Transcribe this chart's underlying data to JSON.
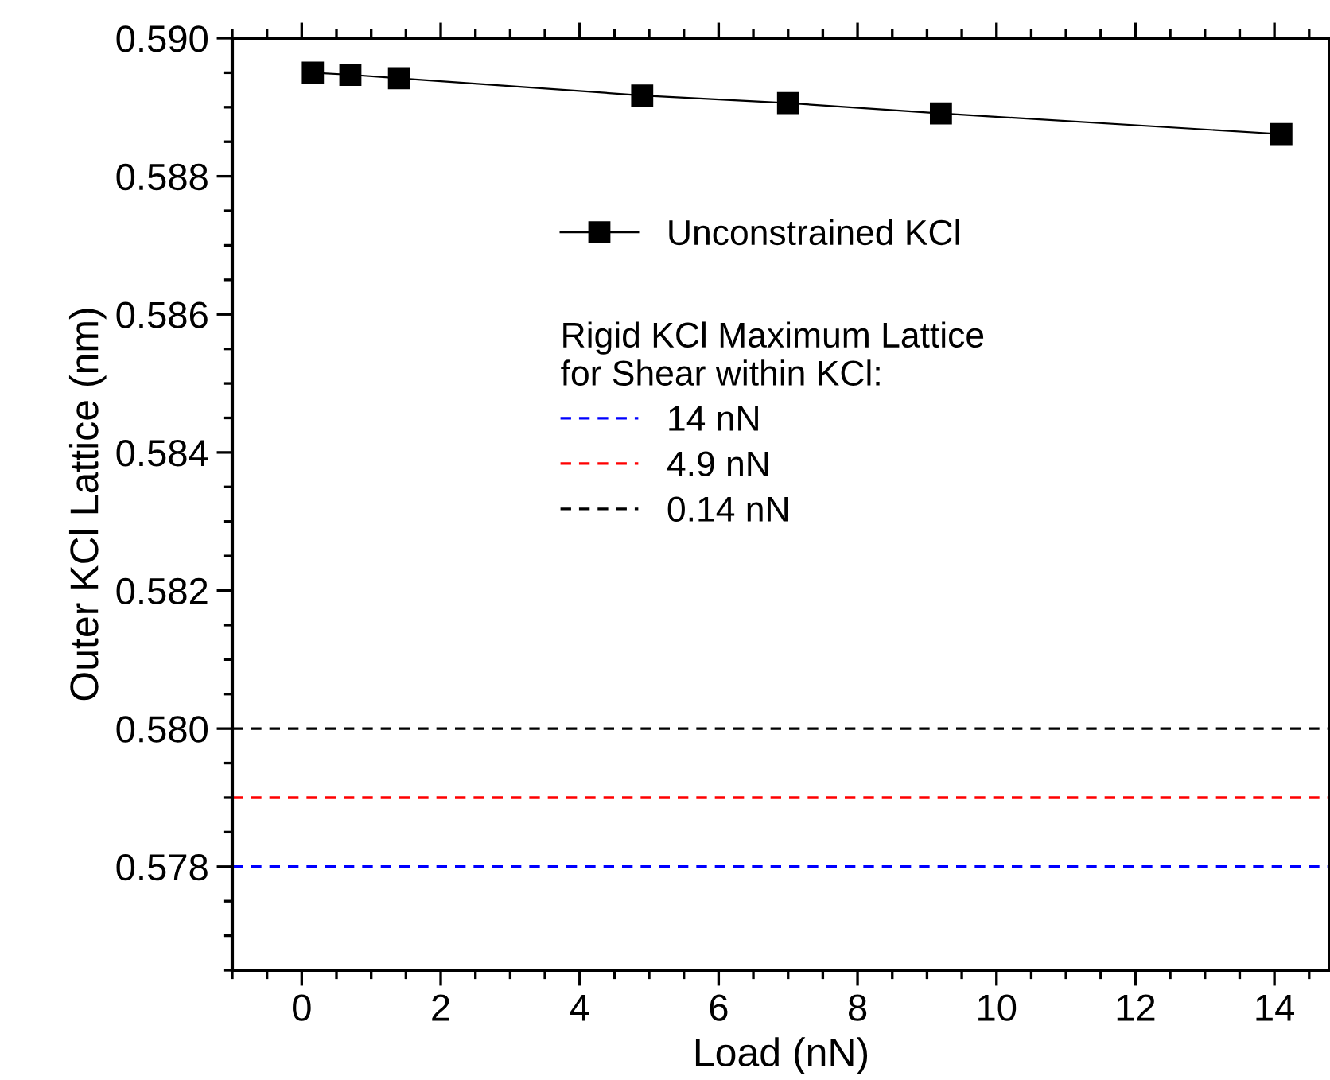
{
  "chart_data": {
    "type": "line",
    "xlabel": "Load (nN)",
    "ylabel": "Outer KCl Lattice (nm)",
    "x": [
      0.16,
      0.7,
      1.4,
      4.9,
      7.0,
      9.2,
      14.1
    ],
    "series": [
      {
        "name": "Unconstrained KCl",
        "color": "#000000",
        "values": [
          0.5895,
          0.58947,
          0.58942,
          0.58917,
          0.58906,
          0.58891,
          0.58861
        ]
      }
    ],
    "marker": "square",
    "line_style": "solid",
    "xlim": [
      -1,
      14.8
    ],
    "xticks": [
      0,
      2,
      4,
      6,
      8,
      10,
      12,
      14
    ],
    "ylim": [
      0.5765,
      0.59
    ],
    "yticks": [
      {
        "value": 0.578,
        "label": "0.578"
      },
      {
        "value": 0.58,
        "label": "0.580"
      },
      {
        "value": 0.582,
        "label": "0.582"
      },
      {
        "value": 0.584,
        "label": "0.584"
      },
      {
        "value": 0.586,
        "label": "0.586"
      },
      {
        "value": 0.588,
        "label": "0.588"
      },
      {
        "value": 0.59,
        "label": "0.590"
      }
    ],
    "legend_title": "Rigid KCl Maximum Lattice\nfor Shear within KCl:",
    "ref_lines": [
      {
        "axis": "y",
        "value": 0.578,
        "label": "14 nN",
        "color": "#0000ff",
        "line_style": "dashed"
      },
      {
        "axis": "y",
        "value": 0.579,
        "label": "4.9 nN",
        "color": "#ff0000",
        "line_style": "dashed"
      },
      {
        "axis": "y",
        "value": 0.58,
        "label": "0.14 nN",
        "color": "#000000",
        "line_style": "dashed"
      }
    ],
    "grid": false,
    "legend": "top right"
  }
}
